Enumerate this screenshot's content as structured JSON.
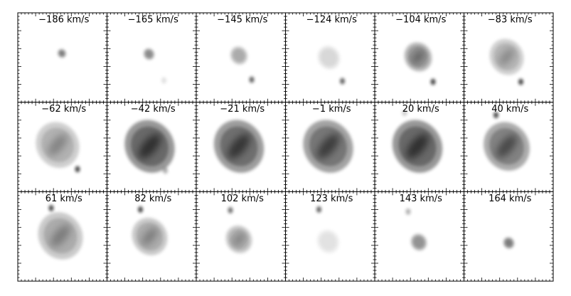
{
  "panels": [
    {
      "label": "−186 km/s"
    },
    {
      "label": "−165 km/s"
    },
    {
      "label": "−145 km/s"
    },
    {
      "label": "−124 km/s"
    },
    {
      "label": "−104 km/s"
    },
    {
      "label": "−83 km/s"
    },
    {
      "label": "−62 km/s"
    },
    {
      "label": "−42 km/s"
    },
    {
      "label": "−21 km/s"
    },
    {
      "label": "−1 km/s"
    },
    {
      "label": "20 km/s"
    },
    {
      "label": "40 km/s"
    },
    {
      "label": "61 km/s"
    },
    {
      "label": "82 km/s"
    },
    {
      "label": "102 km/s"
    },
    {
      "label": "123 km/s"
    },
    {
      "label": "143 km/s"
    },
    {
      "label": "164 km/s"
    }
  ]
}
